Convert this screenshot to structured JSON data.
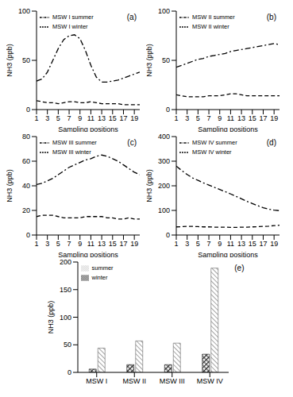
{
  "chart_data": [
    {
      "type": "line",
      "annotation": "(a)",
      "xlabel": "Sampling positions",
      "ylabel": "NH3 (ppb)",
      "legend": "upper left",
      "x": [
        1,
        2,
        3,
        4,
        5,
        6,
        7,
        8,
        9,
        10,
        11,
        12,
        13,
        14,
        15,
        16,
        17,
        18,
        19,
        20
      ],
      "xlim": [
        1,
        20
      ],
      "xticks": [
        1,
        3,
        5,
        7,
        9,
        11,
        13,
        15,
        17,
        19
      ],
      "ylim": [
        0,
        100
      ],
      "yticks": [
        0,
        50,
        100
      ],
      "series": [
        {
          "name": "MSW I summer",
          "color": "#000000",
          "line_style": "dashdot",
          "values": [
            29,
            31,
            38,
            50,
            62,
            71,
            75,
            76,
            72,
            60,
            45,
            33,
            28,
            28,
            29,
            30,
            32,
            34,
            36,
            38
          ]
        },
        {
          "name": "MSW I winter",
          "color": "#000000",
          "line_style": "dashed",
          "values": [
            9,
            8,
            7,
            7,
            6,
            7,
            8,
            8,
            7,
            7,
            8,
            7,
            6,
            6,
            6,
            6,
            5,
            5,
            5,
            5
          ]
        }
      ]
    },
    {
      "type": "line",
      "annotation": "(b)",
      "xlabel": "Sampling positions",
      "ylabel": "NH3 (ppb)",
      "legend": "upper left",
      "x": [
        1,
        2,
        3,
        4,
        5,
        6,
        7,
        8,
        9,
        10,
        11,
        12,
        13,
        14,
        15,
        16,
        17,
        18,
        19,
        20
      ],
      "xlim": [
        1,
        20
      ],
      "xticks": [
        1,
        3,
        5,
        7,
        9,
        11,
        13,
        15,
        17,
        19
      ],
      "ylim": [
        0,
        100
      ],
      "yticks": [
        0,
        50,
        100
      ],
      "series": [
        {
          "name": "MSW II summer",
          "color": "#000000",
          "line_style": "dashdot",
          "values": [
            43,
            45,
            47,
            49,
            51,
            52,
            54,
            55,
            56,
            57,
            59,
            60,
            61,
            62,
            63,
            64,
            65,
            66,
            67,
            66
          ]
        },
        {
          "name": "MSW II winter",
          "color": "#000000",
          "line_style": "dashed",
          "values": [
            15,
            14,
            13,
            13,
            13,
            13,
            14,
            14,
            14,
            15,
            16,
            16,
            15,
            14,
            14,
            14,
            14,
            14,
            14,
            14
          ]
        }
      ]
    },
    {
      "type": "line",
      "annotation": "(c)",
      "xlabel": "Sampling positions",
      "ylabel": "NH3 (ppb)",
      "legend": "upper left",
      "x": [
        1,
        2,
        3,
        4,
        5,
        6,
        7,
        8,
        9,
        10,
        11,
        12,
        13,
        14,
        15,
        16,
        17,
        18,
        19,
        20
      ],
      "xlim": [
        1,
        20
      ],
      "xticks": [
        1,
        3,
        5,
        7,
        9,
        11,
        13,
        15,
        17,
        19
      ],
      "ylim": [
        0,
        80
      ],
      "yticks": [
        0,
        20,
        40,
        60,
        80
      ],
      "series": [
        {
          "name": "MSW III summer",
          "color": "#000000",
          "line_style": "dashdot",
          "values": [
            41,
            42,
            44,
            46,
            49,
            52,
            55,
            57,
            59,
            61,
            62,
            64,
            65,
            64,
            62,
            60,
            57,
            54,
            51,
            49
          ]
        },
        {
          "name": "MSW III winter",
          "color": "#000000",
          "line_style": "dashed",
          "values": [
            15,
            16,
            16,
            16,
            15,
            14,
            14,
            14,
            14,
            15,
            15,
            15,
            15,
            14,
            14,
            13,
            13,
            14,
            13,
            13
          ]
        }
      ]
    },
    {
      "type": "line",
      "annotation": "(d)",
      "xlabel": "Sampling positions",
      "ylabel": "NH3 (ppb)",
      "legend": "upper left",
      "x": [
        1,
        2,
        3,
        4,
        5,
        6,
        7,
        8,
        9,
        10,
        11,
        12,
        13,
        14,
        15,
        16,
        17,
        18,
        19,
        20
      ],
      "xlim": [
        1,
        20
      ],
      "xticks": [
        1,
        3,
        5,
        7,
        9,
        11,
        13,
        15,
        17,
        19
      ],
      "ylim": [
        0,
        400
      ],
      "yticks": [
        0,
        100,
        200,
        300,
        400
      ],
      "series": [
        {
          "name": "MSW IV summer",
          "color": "#000000",
          "line_style": "dashdot",
          "values": [
            280,
            262,
            246,
            232,
            222,
            212,
            203,
            194,
            185,
            176,
            167,
            157,
            147,
            137,
            128,
            119,
            111,
            105,
            101,
            99
          ]
        },
        {
          "name": "MSW IV winter",
          "color": "#000000",
          "line_style": "dashed",
          "values": [
            33,
            34,
            35,
            35,
            34,
            33,
            33,
            32,
            32,
            32,
            31,
            31,
            32,
            32,
            33,
            34,
            35,
            36,
            38,
            40
          ]
        }
      ]
    },
    {
      "type": "bar",
      "annotation": "(e)",
      "ylabel": "NH3 (ppb)",
      "legend": "upper left",
      "categories": [
        "MSW I",
        "MSW II",
        "MSW III",
        "MSW IV"
      ],
      "ylim": [
        0,
        200
      ],
      "yticks": [
        0,
        50,
        100,
        150,
        200
      ],
      "series": [
        {
          "name": "winter",
          "color": "#222222",
          "values": [
            6,
            14,
            14,
            33
          ]
        },
        {
          "name": "summer",
          "color": "#666666",
          "values": [
            44,
            57,
            53,
            189
          ]
        }
      ]
    }
  ]
}
